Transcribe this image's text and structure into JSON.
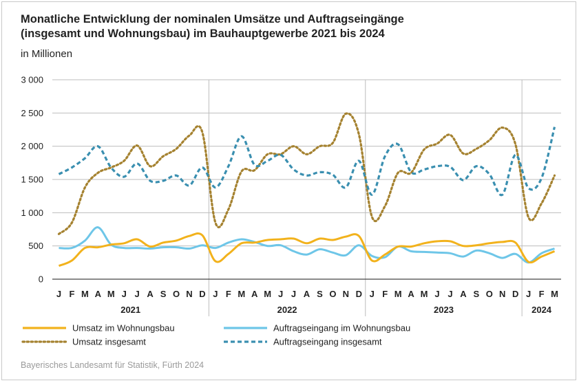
{
  "header": {
    "title_line1": "Monatliche Entwicklung der nominalen Umsätze und Auftragseingänge",
    "title_line2": "(insgesamt und Wohnungsbau) im Bauhauptgewerbe 2021 bis 2024",
    "subtitle": "in Millionen"
  },
  "source": "Bayerisches Landesamt für Statistik, Fürth 2024",
  "colors": {
    "umsatz": "#f2b21c",
    "auftrag": "#6ec6e8",
    "umsatz_total": "#a58230",
    "auftrag_total": "#3a8fb0",
    "grid": "#bdbdbd",
    "axis": "#444444"
  },
  "chart_data": {
    "type": "line",
    "title": "Monatliche Entwicklung der nominalen Umsätze und Auftragseingänge (insgesamt und Wohnungsbau) im Bauhauptgewerbe 2021 bis 2024",
    "ylabel": "in Millionen",
    "ylim": [
      0,
      3000
    ],
    "yticks": [
      "0",
      "500",
      "1 000",
      "1 500",
      "2 000",
      "2 500",
      "3 000"
    ],
    "grid": true,
    "legend_position": "bottom",
    "x": [
      "J",
      "F",
      "M",
      "A",
      "M",
      "J",
      "J",
      "A",
      "S",
      "O",
      "N",
      "D",
      "J",
      "F",
      "M",
      "A",
      "M",
      "J",
      "J",
      "A",
      "S",
      "O",
      "N",
      "D",
      "J",
      "F",
      "M",
      "A",
      "M",
      "J",
      "J",
      "A",
      "S",
      "O",
      "N",
      "D",
      "J",
      "F",
      "M"
    ],
    "years": [
      {
        "label": "2021",
        "start": 0,
        "end": 11
      },
      {
        "label": "2022",
        "start": 12,
        "end": 23
      },
      {
        "label": "2023",
        "start": 24,
        "end": 35
      },
      {
        "label": "2024",
        "start": 36,
        "end": 38
      }
    ],
    "series": [
      {
        "name": "Umsatz im Wohnungsbau",
        "style": "solid",
        "color_key": "umsatz",
        "values": [
          200,
          280,
          470,
          480,
          520,
          540,
          600,
          490,
          550,
          580,
          650,
          660,
          270,
          380,
          540,
          550,
          590,
          600,
          610,
          540,
          610,
          590,
          640,
          650,
          280,
          370,
          490,
          490,
          540,
          570,
          570,
          500,
          510,
          540,
          560,
          550,
          260,
          340,
          420
        ]
      },
      {
        "name": "Umsatz insgesamt",
        "style": "dotted",
        "color_key": "umsatz_total",
        "values": [
          680,
          850,
          1380,
          1600,
          1680,
          1780,
          2010,
          1700,
          1850,
          1960,
          2160,
          2210,
          850,
          1050,
          1620,
          1640,
          1880,
          1880,
          2000,
          1880,
          2000,
          2050,
          2490,
          2180,
          940,
          1100,
          1600,
          1600,
          1950,
          2040,
          2170,
          1890,
          1960,
          2090,
          2280,
          2030,
          930,
          1140,
          1560
        ]
      },
      {
        "name": "Auftragseingang im Wohnungsbau",
        "style": "solid",
        "color_key": "auftrag",
        "values": [
          470,
          470,
          580,
          780,
          520,
          470,
          470,
          460,
          480,
          480,
          460,
          510,
          470,
          550,
          600,
          560,
          500,
          510,
          420,
          370,
          450,
          400,
          360,
          510,
          350,
          330,
          490,
          420,
          410,
          400,
          390,
          340,
          430,
          390,
          320,
          380,
          250,
          390,
          460
        ]
      },
      {
        "name": "Auftragseingang insgesamt",
        "style": "dashed",
        "color_key": "auftrag_total",
        "values": [
          1580,
          1680,
          1820,
          2000,
          1680,
          1540,
          1740,
          1480,
          1480,
          1560,
          1410,
          1680,
          1380,
          1700,
          2150,
          1720,
          1780,
          1870,
          1650,
          1560,
          1610,
          1570,
          1380,
          1780,
          1270,
          1850,
          2030,
          1610,
          1650,
          1700,
          1690,
          1490,
          1700,
          1580,
          1270,
          1870,
          1370,
          1520,
          2290
        ]
      }
    ]
  }
}
